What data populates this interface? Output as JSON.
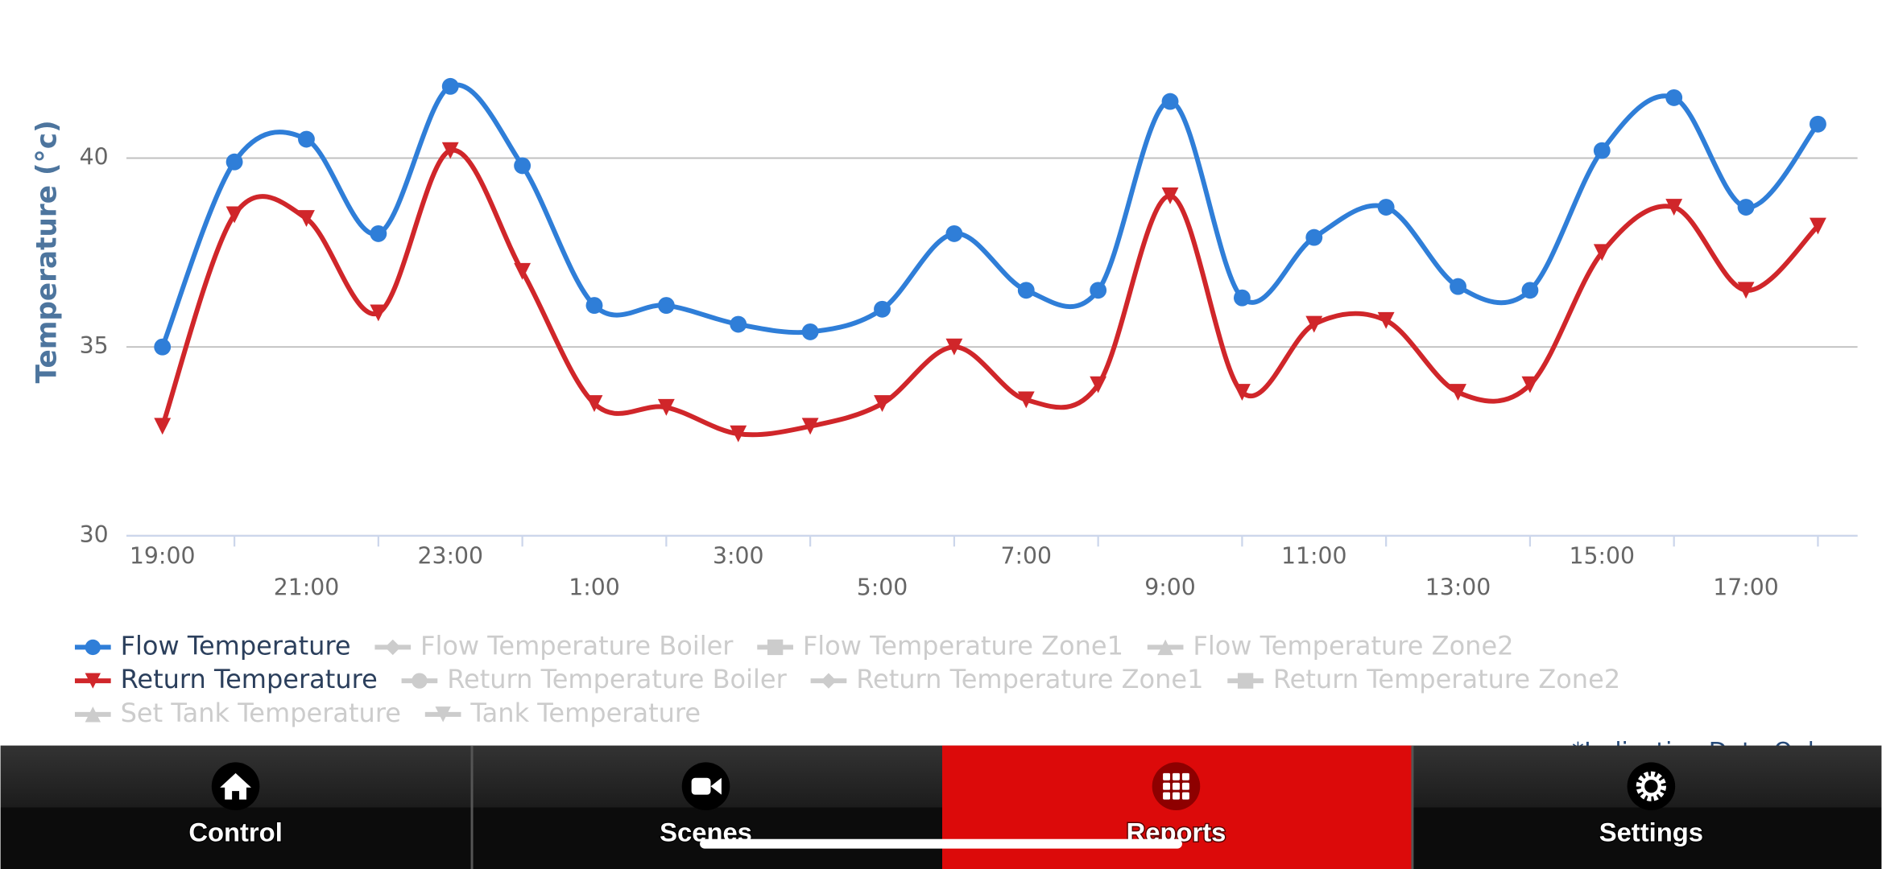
{
  "chart_data": {
    "type": "line",
    "smooth": true,
    "y_label": "Temperature (°c)",
    "categories": [
      "19:00",
      null,
      "21:00",
      null,
      "23:00",
      null,
      "1:00",
      null,
      "3:00",
      null,
      "5:00",
      null,
      "7:00",
      null,
      "9:00",
      null,
      "11:00",
      null,
      "13:00",
      null,
      "15:00",
      null,
      "17:00",
      null
    ],
    "series": [
      {
        "name": "Flow Temperature",
        "color": "#2f7ed8",
        "marker": "circle",
        "visible": true,
        "values": [
          35.0,
          39.9,
          40.5,
          38.0,
          41.9,
          39.8,
          36.1,
          36.1,
          35.6,
          35.4,
          36.0,
          38.0,
          36.5,
          36.5,
          41.5,
          36.3,
          37.9,
          38.7,
          36.6,
          36.5,
          40.2,
          41.6,
          38.7,
          40.9
        ]
      },
      {
        "name": "Flow Temperature Boiler",
        "color": "#cccccc",
        "marker": "diamond",
        "visible": false
      },
      {
        "name": "Flow Temperature Zone1",
        "color": "#cccccc",
        "marker": "square",
        "visible": false
      },
      {
        "name": "Flow Temperature Zone2",
        "color": "#cccccc",
        "marker": "triangle",
        "visible": false
      },
      {
        "name": "Return Temperature",
        "color": "#d0262a",
        "marker": "triangle-down",
        "visible": true,
        "values": [
          32.9,
          38.5,
          38.4,
          35.9,
          40.2,
          37.0,
          33.5,
          33.4,
          32.7,
          32.9,
          33.5,
          35.0,
          33.6,
          34.0,
          39.0,
          33.8,
          35.6,
          35.7,
          33.8,
          34.0,
          37.5,
          38.7,
          36.5,
          38.2
        ]
      },
      {
        "name": "Return Temperature Boiler",
        "color": "#cccccc",
        "marker": "circle",
        "visible": false
      },
      {
        "name": "Return Temperature Zone1",
        "color": "#cccccc",
        "marker": "diamond",
        "visible": false
      },
      {
        "name": "Return Temperature Zone2",
        "color": "#cccccc",
        "marker": "square",
        "visible": false
      },
      {
        "name": "Set Tank Temperature",
        "color": "#cccccc",
        "marker": "triangle",
        "visible": false
      },
      {
        "name": "Tank Temperature",
        "color": "#cccccc",
        "marker": "triangle-down",
        "visible": false
      }
    ],
    "ylim": [
      30,
      42.6
    ],
    "yticks": [
      30,
      35,
      40
    ],
    "grid": true,
    "note": "*Indicative Data Only"
  },
  "tab_bar": {
    "tabs": [
      "Control",
      "Scenes",
      "Reports",
      "Settings"
    ],
    "active": 2
  }
}
